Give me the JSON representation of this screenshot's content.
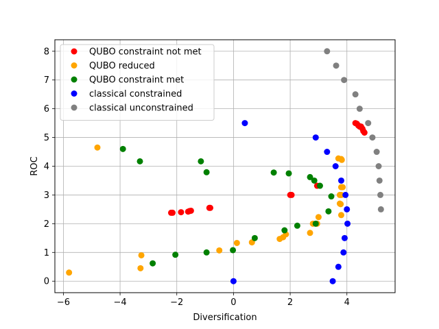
{
  "chart_data": {
    "type": "scatter",
    "title": "",
    "xlabel": "Diversification",
    "ylabel": "ROC",
    "xlim": [
      -6.3,
      5.7
    ],
    "ylim": [
      -0.4,
      8.4
    ],
    "xticks": [
      -6,
      -4,
      -2,
      0,
      2,
      4
    ],
    "yticks": [
      0,
      1,
      2,
      3,
      4,
      5,
      6,
      7,
      8
    ],
    "grid": true,
    "legend_position": "top-left",
    "series": [
      {
        "name": "QUBO constraint not met",
        "color": "#ff0000",
        "points": [
          [
            -2.2,
            2.38
          ],
          [
            -2.15,
            2.38
          ],
          [
            -1.85,
            2.4
          ],
          [
            -1.6,
            2.42
          ],
          [
            -1.55,
            2.44
          ],
          [
            -1.5,
            2.45
          ],
          [
            -0.85,
            2.55
          ],
          [
            -0.82,
            2.55
          ],
          [
            2.0,
            3.0
          ],
          [
            2.05,
            3.0
          ],
          [
            2.95,
            3.32
          ],
          [
            4.3,
            5.5
          ],
          [
            4.35,
            5.48
          ],
          [
            4.4,
            5.42
          ],
          [
            4.45,
            5.38
          ],
          [
            4.5,
            5.38
          ],
          [
            4.55,
            5.3
          ],
          [
            4.58,
            5.22
          ],
          [
            4.62,
            5.17
          ]
        ]
      },
      {
        "name": "QUBO reduced",
        "color": "#ffa500",
        "points": [
          [
            -5.8,
            0.3
          ],
          [
            -4.8,
            4.65
          ],
          [
            -3.25,
            0.9
          ],
          [
            -3.28,
            0.45
          ],
          [
            -0.5,
            1.07
          ],
          [
            0.12,
            1.33
          ],
          [
            0.65,
            1.35
          ],
          [
            1.63,
            1.47
          ],
          [
            1.75,
            1.53
          ],
          [
            1.85,
            1.63
          ],
          [
            2.7,
            1.68
          ],
          [
            2.8,
            2.0
          ],
          [
            2.95,
            2.0
          ],
          [
            3.0,
            2.23
          ],
          [
            3.7,
            4.27
          ],
          [
            3.8,
            4.25
          ],
          [
            3.82,
            4.22
          ],
          [
            3.8,
            3.27
          ],
          [
            3.85,
            3.27
          ],
          [
            3.75,
            3.0
          ],
          [
            3.8,
            3.0
          ],
          [
            3.75,
            2.7
          ],
          [
            3.78,
            2.68
          ],
          [
            3.8,
            2.3
          ]
        ]
      },
      {
        "name": "QUBO constraint met",
        "color": "#008000",
        "points": [
          [
            -3.9,
            4.6
          ],
          [
            -3.3,
            4.17
          ],
          [
            -2.85,
            0.62
          ],
          [
            -2.05,
            0.92
          ],
          [
            -1.15,
            4.17
          ],
          [
            -0.95,
            3.79
          ],
          [
            -0.95,
            1.0
          ],
          [
            -0.02,
            1.08
          ],
          [
            0.75,
            1.5
          ],
          [
            1.42,
            3.78
          ],
          [
            1.8,
            1.77
          ],
          [
            1.95,
            3.75
          ],
          [
            2.25,
            1.93
          ],
          [
            2.7,
            3.62
          ],
          [
            2.85,
            3.5
          ],
          [
            2.9,
            2.0
          ],
          [
            3.05,
            3.32
          ],
          [
            3.35,
            2.43
          ],
          [
            3.45,
            2.95
          ]
        ]
      },
      {
        "name": "classical constrained",
        "color": "#0000ff",
        "points": [
          [
            0.4,
            5.5
          ],
          [
            2.9,
            5.0
          ],
          [
            3.3,
            4.5
          ],
          [
            3.6,
            4.0
          ],
          [
            3.8,
            3.5
          ],
          [
            3.95,
            3.0
          ],
          [
            4.0,
            2.5
          ],
          [
            4.02,
            2.0
          ],
          [
            3.92,
            1.5
          ],
          [
            3.88,
            1.0
          ],
          [
            3.7,
            0.5
          ],
          [
            3.5,
            0.0
          ],
          [
            0.0,
            0.0
          ]
        ]
      },
      {
        "name": "classical unconstrained",
        "color": "#808080",
        "points": [
          [
            3.3,
            8.0
          ],
          [
            3.62,
            7.5
          ],
          [
            3.9,
            7.0
          ],
          [
            4.3,
            6.5
          ],
          [
            4.45,
            6.0
          ],
          [
            4.75,
            5.5
          ],
          [
            4.9,
            5.0
          ],
          [
            5.05,
            4.5
          ],
          [
            5.12,
            4.0
          ],
          [
            5.15,
            3.5
          ],
          [
            5.18,
            3.0
          ],
          [
            5.2,
            2.5
          ]
        ]
      }
    ]
  }
}
